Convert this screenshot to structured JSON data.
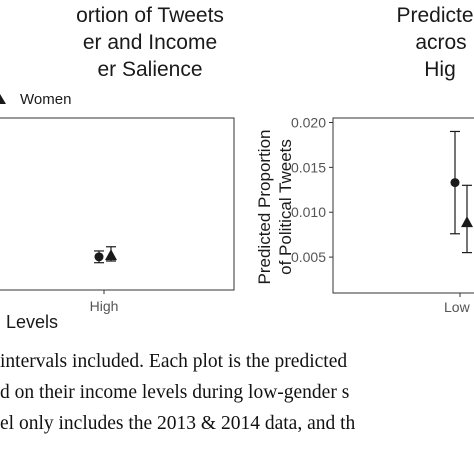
{
  "chart_data": [
    {
      "type": "scatter",
      "title_lines": [
        "ortion of Tweets",
        "er and Income",
        "er Salience"
      ],
      "legend": {
        "label": "Women",
        "marker": "triangle",
        "position": "top"
      },
      "categories": [
        "High"
      ],
      "xlabel": "Levels",
      "ylabel": "",
      "series": [
        {
          "marker": "circle",
          "values": [
            0.003
          ],
          "error_low": [
            0.0023
          ],
          "error_high": [
            0.0037
          ]
        },
        {
          "marker": "triangle",
          "values": [
            0.0032
          ],
          "error_low": [
            0.0025
          ],
          "error_high": [
            0.0042
          ]
        }
      ],
      "grid": false
    },
    {
      "type": "scatter",
      "title_lines": [
        "Predicte",
        "acros",
        "Hig"
      ],
      "categories": [
        "Low"
      ],
      "xlabel": "",
      "ylabel_lines": [
        "Predicted Proportion",
        "of Political Tweets"
      ],
      "yticks": [
        "0.005",
        "0.010",
        "0.015",
        "0.020"
      ],
      "ylim": [
        0.001,
        0.0205
      ],
      "series": [
        {
          "marker": "circle",
          "values": [
            0.0133
          ],
          "error_low": [
            0.0076
          ],
          "error_high": [
            0.019
          ]
        },
        {
          "marker": "triangle",
          "values": [
            0.0089
          ],
          "error_low": [
            0.0055
          ],
          "error_high": [
            0.013
          ]
        }
      ],
      "grid": false
    }
  ],
  "caption": {
    "lines": [
      " intervals included. Each plot is the predicted",
      "d on their income levels during low-gender s",
      "el only includes the 2013 & 2014 data, and th"
    ]
  },
  "colors": {
    "ink": "#1a1a1a",
    "frame": "#333333",
    "tick_text": "#555555"
  }
}
